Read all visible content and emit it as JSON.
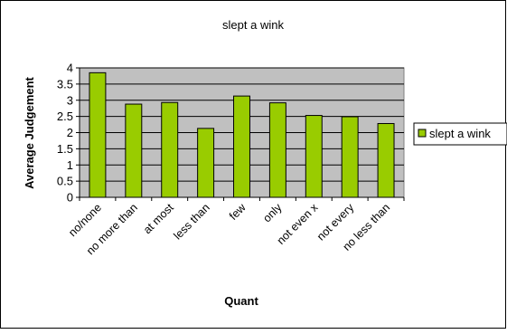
{
  "chart_data": {
    "type": "bar",
    "title": "slept a wink",
    "xlabel": "Quant",
    "ylabel": "Average Judgement",
    "categories": [
      "no/none",
      "no more than",
      "at most",
      "less than",
      "few",
      "only",
      "not even x",
      "not every",
      "no less than"
    ],
    "series": [
      {
        "name": "slept a wink",
        "values": [
          3.85,
          2.88,
          2.93,
          2.13,
          3.13,
          2.92,
          2.53,
          2.49,
          2.28
        ],
        "color": "#99cc00"
      }
    ],
    "ylim": [
      0,
      4
    ],
    "yticks": [
      "0",
      "0.5",
      "1",
      "1.5",
      "2",
      "2.5",
      "3",
      "3.5",
      "4"
    ],
    "grid": true,
    "plot_background": "#c0c0c0",
    "legend_position": "right"
  }
}
